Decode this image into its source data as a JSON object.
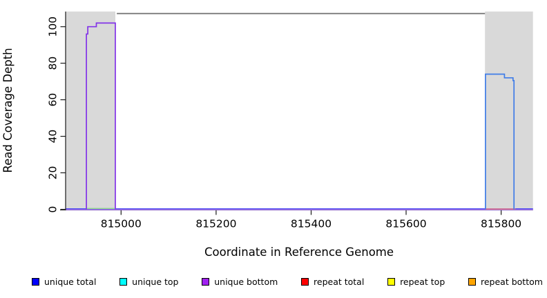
{
  "figure": {
    "xlabel": "Coordinate in Reference Genome",
    "ylabel": "Read Coverage Depth"
  },
  "legend": {
    "items": [
      {
        "label": "unique total",
        "color": "#0000ff"
      },
      {
        "label": "unique top",
        "color": "#00ffff"
      },
      {
        "label": "unique bottom",
        "color": "#a020f0"
      },
      {
        "label": "repeat total",
        "color": "#ff0000"
      },
      {
        "label": "repeat top",
        "color": "#ffff00"
      },
      {
        "label": "repeat bottom",
        "color": "#ffa500"
      }
    ]
  },
  "chart_data": {
    "type": "line",
    "title": "",
    "xlabel": "Coordinate in Reference Genome",
    "ylabel": "Read Coverage Depth",
    "xlim": [
      814884,
      815867
    ],
    "ylim": [
      0,
      108.3
    ],
    "x_ticks": [
      815000,
      815200,
      815400,
      815600,
      815800
    ],
    "y_ticks": [
      0,
      20,
      40,
      60,
      80,
      100
    ],
    "grid": false,
    "legend_position": "bottom",
    "shaded_regions": [
      {
        "name": "shaded-region-left",
        "x0": 814884,
        "x1": 814988,
        "color": "#d9d9d9"
      },
      {
        "name": "shaded-region-right",
        "x0": 815766,
        "x1": 815867,
        "color": "#d9d9d9"
      }
    ],
    "reference_line": {
      "name": "top-reference-line",
      "x0": 814991,
      "x1": 815766,
      "y": 107.2,
      "color": "#6f6f6f",
      "width": 1.8
    },
    "series": [
      {
        "name": "baseline-unique-bottom",
        "color": "#a875f2",
        "width": 2.4,
        "points": [
          [
            814884,
            0
          ],
          [
            815867,
            0
          ]
        ]
      },
      {
        "name": "baseline-unique-total",
        "color": "#4646f0",
        "width": 1.2,
        "points": [
          [
            814884,
            0.35
          ],
          [
            815867,
            0.35
          ]
        ]
      },
      {
        "name": "left-region-bottom-green",
        "color": "#8fd28f",
        "width": 1.5,
        "points": [
          [
            814927,
            0.5
          ],
          [
            814988,
            0.5
          ]
        ]
      },
      {
        "name": "right-region-bottom-red",
        "color": "#f27d7d",
        "width": 1.6,
        "points": [
          [
            815767,
            0.2
          ],
          [
            815830,
            0.2
          ]
        ]
      },
      {
        "name": "unique-coverage-left-peak",
        "color": "#8232e8",
        "width": 1.7,
        "points": [
          [
            814927,
            0
          ],
          [
            814927,
            96
          ],
          [
            814930,
            96
          ],
          [
            814930,
            100
          ],
          [
            814948,
            100
          ],
          [
            814948,
            102
          ],
          [
            814988,
            102
          ],
          [
            814988,
            0
          ]
        ]
      },
      {
        "name": "unique-coverage-right-peak",
        "color": "#3f7ce8",
        "width": 1.7,
        "points": [
          [
            815767,
            0
          ],
          [
            815767,
            74
          ],
          [
            815807,
            74
          ],
          [
            815807,
            72
          ],
          [
            815825,
            72
          ],
          [
            815825,
            70.5
          ],
          [
            815827,
            70.5
          ],
          [
            815827,
            0
          ]
        ]
      }
    ]
  }
}
